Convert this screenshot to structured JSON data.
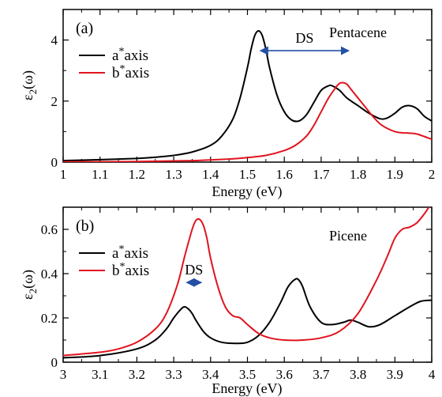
{
  "chart_data": [
    {
      "type": "line",
      "panel_label": "(a)",
      "material": "Pentacene",
      "xlabel": "Energy (eV)",
      "ylabel_main": "ε",
      "ylabel_sub": "2",
      "ylabel_tail": "(ω)",
      "xlim": [
        1.0,
        2.0
      ],
      "ylim": [
        0,
        5
      ],
      "xticks": [
        1,
        1.1,
        1.2,
        1.3,
        1.4,
        1.5,
        1.6,
        1.7,
        1.8,
        1.9,
        2
      ],
      "xtick_labels": [
        "1",
        "1.1",
        "1.2",
        "1.3",
        "1.4",
        "1.5",
        "1.6",
        "1.7",
        "1.8",
        "1.9",
        "2"
      ],
      "yticks": [
        0,
        2,
        4
      ],
      "ytick_labels": [
        "0",
        "2",
        "4"
      ],
      "legend_position": "upper-left",
      "annotation": {
        "text": "DS",
        "x_start": 1.535,
        "x_end": 1.775,
        "y": 3.65,
        "color": "#2450a6"
      },
      "series": [
        {
          "name": "a*axis",
          "legend_base": "a",
          "legend_sup": "*",
          "legend_tail": "axis",
          "color": "#000000",
          "x": [
            1.0,
            1.1,
            1.2,
            1.25,
            1.3,
            1.35,
            1.4,
            1.43,
            1.46,
            1.48,
            1.5,
            1.51,
            1.52,
            1.53,
            1.54,
            1.55,
            1.56,
            1.58,
            1.6,
            1.62,
            1.64,
            1.66,
            1.68,
            1.7,
            1.72,
            1.73,
            1.75,
            1.77,
            1.8,
            1.83,
            1.86,
            1.88,
            1.9,
            1.92,
            1.94,
            1.96,
            1.98,
            2.0
          ],
          "y": [
            0.05,
            0.08,
            0.12,
            0.16,
            0.22,
            0.33,
            0.55,
            0.85,
            1.4,
            2.1,
            3.1,
            3.7,
            4.15,
            4.3,
            4.15,
            3.7,
            3.1,
            2.2,
            1.65,
            1.38,
            1.35,
            1.55,
            1.95,
            2.35,
            2.5,
            2.5,
            2.35,
            2.1,
            1.85,
            1.6,
            1.42,
            1.45,
            1.6,
            1.8,
            1.85,
            1.75,
            1.5,
            1.35
          ]
        },
        {
          "name": "b*axis",
          "legend_base": "b",
          "legend_sup": "*",
          "legend_tail": "axis",
          "color": "#e0141e",
          "x": [
            1.0,
            1.2,
            1.35,
            1.45,
            1.5,
            1.55,
            1.6,
            1.63,
            1.66,
            1.68,
            1.7,
            1.72,
            1.74,
            1.75,
            1.76,
            1.77,
            1.78,
            1.8,
            1.82,
            1.84,
            1.86,
            1.88,
            1.9,
            1.92,
            1.94,
            1.96,
            2.0
          ],
          "y": [
            0.01,
            0.02,
            0.05,
            0.1,
            0.15,
            0.22,
            0.38,
            0.55,
            0.85,
            1.2,
            1.65,
            2.1,
            2.45,
            2.58,
            2.6,
            2.55,
            2.4,
            2.1,
            1.8,
            1.5,
            1.25,
            1.1,
            1.0,
            0.96,
            0.95,
            0.92,
            0.75
          ]
        }
      ]
    },
    {
      "type": "line",
      "panel_label": "(b)",
      "material": "Picene",
      "xlabel": "Energy (eV)",
      "ylabel_main": "ε",
      "ylabel_sub": "2",
      "ylabel_tail": "(ω)",
      "xlim": [
        3.0,
        4.0
      ],
      "ylim": [
        0,
        0.7
      ],
      "xticks": [
        3,
        3.1,
        3.2,
        3.3,
        3.4,
        3.5,
        3.6,
        3.7,
        3.8,
        3.9,
        4
      ],
      "xtick_labels": [
        "3",
        "3.1",
        "3.2",
        "3.3",
        "3.4",
        "3.5",
        "3.6",
        "3.7",
        "3.8",
        "3.9",
        "4"
      ],
      "yticks": [
        0,
        0.2,
        0.4,
        0.6
      ],
      "ytick_labels": [
        "0",
        "0.2",
        "0.4",
        "0.6"
      ],
      "legend_position": "upper-left",
      "annotation": {
        "text": "DS",
        "x_start": 3.335,
        "x_end": 3.375,
        "y": 0.36,
        "color": "#2450a6"
      },
      "series": [
        {
          "name": "a*axis",
          "legend_base": "a",
          "legend_sup": "*",
          "legend_tail": "axis",
          "color": "#000000",
          "x": [
            3.0,
            3.1,
            3.2,
            3.25,
            3.28,
            3.3,
            3.32,
            3.33,
            3.34,
            3.35,
            3.36,
            3.38,
            3.4,
            3.43,
            3.47,
            3.5,
            3.53,
            3.56,
            3.59,
            3.61,
            3.63,
            3.64,
            3.65,
            3.67,
            3.7,
            3.73,
            3.76,
            3.78,
            3.8,
            3.83,
            3.86,
            3.9,
            3.94,
            3.97,
            4.0
          ],
          "y": [
            0.02,
            0.03,
            0.06,
            0.1,
            0.15,
            0.2,
            0.24,
            0.25,
            0.24,
            0.22,
            0.19,
            0.14,
            0.11,
            0.09,
            0.085,
            0.09,
            0.12,
            0.18,
            0.27,
            0.34,
            0.375,
            0.37,
            0.34,
            0.25,
            0.18,
            0.17,
            0.18,
            0.19,
            0.18,
            0.16,
            0.17,
            0.21,
            0.25,
            0.275,
            0.28
          ]
        },
        {
          "name": "b*axis",
          "legend_base": "b",
          "legend_sup": "*",
          "legend_tail": "axis",
          "color": "#e0141e",
          "x": [
            3.0,
            3.1,
            3.15,
            3.2,
            3.25,
            3.28,
            3.31,
            3.33,
            3.35,
            3.36,
            3.37,
            3.38,
            3.39,
            3.4,
            3.42,
            3.44,
            3.46,
            3.48,
            3.5,
            3.53,
            3.56,
            3.6,
            3.65,
            3.7,
            3.75,
            3.8,
            3.85,
            3.88,
            3.9,
            3.92,
            3.94,
            3.96,
            3.98,
            4.0
          ],
          "y": [
            0.03,
            0.045,
            0.06,
            0.09,
            0.15,
            0.22,
            0.35,
            0.48,
            0.6,
            0.64,
            0.645,
            0.62,
            0.56,
            0.47,
            0.34,
            0.25,
            0.21,
            0.2,
            0.17,
            0.13,
            0.11,
            0.1,
            0.1,
            0.11,
            0.14,
            0.22,
            0.37,
            0.48,
            0.56,
            0.6,
            0.61,
            0.63,
            0.67,
            0.72
          ]
        }
      ]
    }
  ]
}
